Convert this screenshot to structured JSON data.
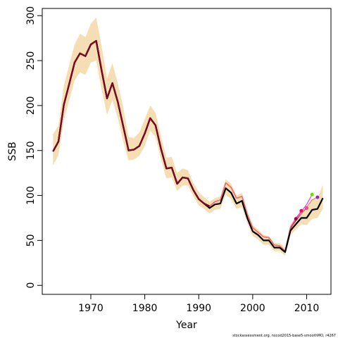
{
  "chart_data": {
    "type": "line",
    "xlabel": "Year",
    "ylabel": "SSB",
    "xlim": [
      1961,
      2014.5
    ],
    "ylim": [
      -10,
      308
    ],
    "x_ticks": [
      1970,
      1980,
      1990,
      2000,
      2010
    ],
    "y_ticks": [
      0,
      50,
      100,
      150,
      200,
      250,
      300
    ],
    "grid": false,
    "legend": "none",
    "footer": "stockassessment.org, nscod2015-base5-smoothMO, r4267",
    "colors": {
      "band": "#F5DEB3",
      "main": "#000000",
      "retro": [
        "#D81B60",
        "#AD1457",
        "#C2185B",
        "#E040FB",
        "#FF6F61"
      ],
      "endpoints": [
        "#880E4F",
        "#FF0066",
        "#FF4081",
        "#66DD00",
        "#9C27B0"
      ]
    },
    "main_series": {
      "x": [
        1963,
        1964,
        1965,
        1966,
        1967,
        1968,
        1969,
        1970,
        1971,
        1972,
        1973,
        1974,
        1975,
        1976,
        1977,
        1978,
        1979,
        1980,
        1981,
        1982,
        1983,
        1984,
        1985,
        1986,
        1987,
        1988,
        1989,
        1990,
        1991,
        1992,
        1993,
        1994,
        1995,
        1996,
        1997,
        1998,
        1999,
        2000,
        2001,
        2002,
        2003,
        2004,
        2005,
        2006,
        2007,
        2008,
        2009,
        2010,
        2011,
        2012,
        2013
      ],
      "y": [
        149,
        160,
        201,
        224,
        248,
        258,
        255,
        268,
        272,
        239,
        208,
        225,
        204,
        177,
        150,
        151,
        155,
        169,
        186,
        178,
        152,
        130,
        131,
        113,
        120,
        119,
        106,
        96,
        91,
        86,
        90,
        91,
        108,
        103,
        91,
        94,
        75,
        60,
        56,
        50,
        50,
        42,
        42,
        37,
        61,
        68,
        75,
        75,
        84,
        85,
        97
      ]
    },
    "band": {
      "upper": [
        168,
        178,
        222,
        245,
        268,
        280,
        276,
        291,
        298,
        266,
        230,
        247,
        225,
        198,
        165,
        164,
        170,
        185,
        200,
        192,
        166,
        142,
        143,
        125,
        130,
        128,
        114,
        104,
        98,
        93,
        97,
        99,
        118,
        113,
        100,
        103,
        83,
        67,
        62,
        56,
        55,
        47,
        47,
        42,
        67,
        75,
        84,
        85,
        95,
        96,
        112
      ],
      "lower": [
        133,
        145,
        183,
        206,
        228,
        237,
        234,
        248,
        250,
        218,
        190,
        206,
        186,
        160,
        139,
        140,
        144,
        155,
        172,
        165,
        140,
        119,
        120,
        105,
        111,
        111,
        99,
        89,
        85,
        80,
        84,
        85,
        101,
        96,
        85,
        87,
        69,
        55,
        51,
        45,
        45,
        38,
        38,
        33,
        56,
        62,
        68,
        67,
        74,
        75,
        85
      ]
    },
    "retro_series": [
      {
        "x": [
          2007,
          2008
        ],
        "y": [
          63,
          74
        ]
      },
      {
        "x": [
          2007,
          2008,
          2009
        ],
        "y": [
          64,
          73,
          83
        ]
      },
      {
        "x": [
          2007,
          2008,
          2009,
          2010
        ],
        "y": [
          64,
          72,
          80,
          86
        ]
      },
      {
        "x": [
          2007,
          2008,
          2009,
          2010,
          2011
        ],
        "y": [
          65,
          75,
          82,
          90,
          101
        ]
      },
      {
        "x": [
          2007,
          2008,
          2009,
          2010,
          2011,
          2012
        ],
        "y": [
          65,
          74,
          80,
          87,
          95,
          98
        ]
      }
    ],
    "retro_common": {
      "x": [
        1963,
        1964,
        1965,
        1966,
        1967,
        1968,
        1969,
        1970,
        1971,
        1972,
        1973,
        1974,
        1975,
        1976,
        1977,
        1978,
        1979,
        1980,
        1981,
        1982,
        1983,
        1984,
        1985,
        1986,
        1987,
        1988,
        1989,
        1990,
        1991,
        1992,
        1993,
        1994,
        1995,
        1996,
        1997,
        1998,
        1999,
        2000,
        2001,
        2002,
        2003,
        2004,
        2005,
        2006
      ],
      "y": [
        149,
        160,
        201,
        224,
        248,
        258,
        255,
        268,
        272,
        239,
        208,
        225,
        204,
        177,
        150,
        151,
        155,
        169,
        186,
        178,
        152,
        130,
        131,
        113,
        120,
        119,
        106,
        96,
        91,
        88,
        93,
        95,
        114,
        109,
        97,
        99,
        79,
        64,
        59,
        54,
        53,
        45,
        44,
        38
      ]
    },
    "endpoints": {
      "x": [
        2008,
        2009,
        2010,
        2011,
        2012
      ],
      "y": [
        74,
        83,
        86,
        101,
        98
      ]
    }
  }
}
